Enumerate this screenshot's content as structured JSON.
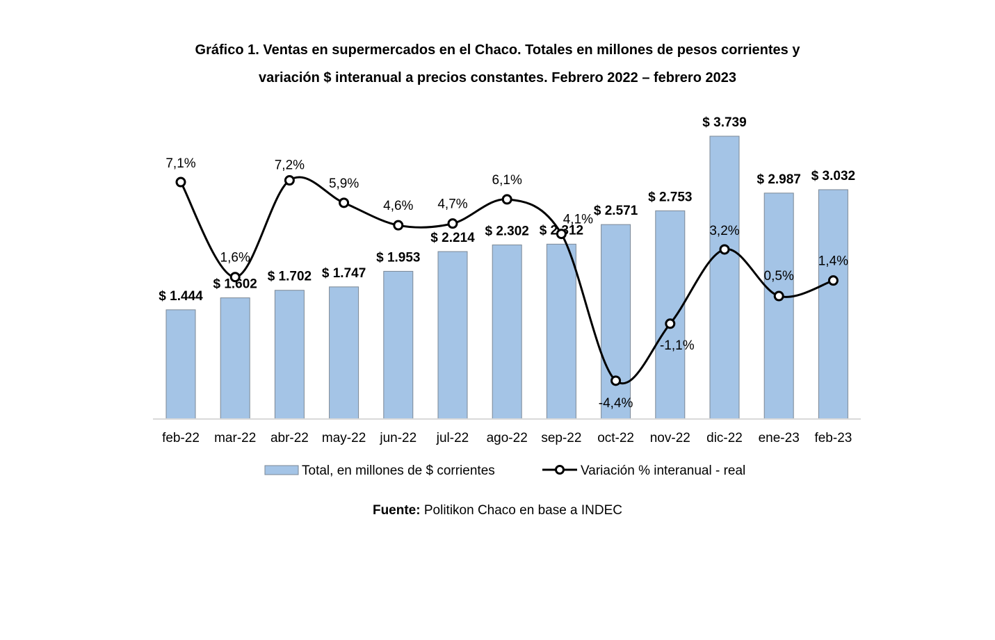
{
  "chart_data": {
    "type": "bar",
    "title_line1": "Gráfico 1. Ventas en supermercados en el Chaco. Totales en millones de pesos corrientes y",
    "title_line2": "variación $ interanual a precios constantes. Febrero 2022 – febrero 2023",
    "categories": [
      "feb-22",
      "mar-22",
      "abr-22",
      "may-22",
      "jun-22",
      "jul-22",
      "ago-22",
      "sep-22",
      "oct-22",
      "nov-22",
      "dic-22",
      "ene-23",
      "feb-23"
    ],
    "series": [
      {
        "name": "Total, en millones de $ corrientes",
        "type": "bar",
        "axis": "left",
        "values": [
          1444,
          1602,
          1702,
          1747,
          1953,
          2214,
          2302,
          2312,
          2571,
          2753,
          3739,
          2987,
          3032
        ],
        "labels": [
          "$ 1.444",
          "$ 1.602",
          "$ 1.702",
          "$ 1.747",
          "$ 1.953",
          "$ 2.214",
          "$ 2.302",
          "$ 2.312",
          "$ 2.571",
          "$ 2.753",
          "$ 3.739",
          "$ 2.987",
          "$ 3.032"
        ]
      },
      {
        "name": "Variación % interanual - real",
        "type": "line",
        "axis": "right",
        "values": [
          7.1,
          1.6,
          7.2,
          5.9,
          4.6,
          4.7,
          6.1,
          4.1,
          -4.4,
          -1.1,
          3.2,
          0.5,
          1.4
        ],
        "labels": [
          "7,1%",
          "1,6%",
          "7,2%",
          "5,9%",
          "4,6%",
          "4,7%",
          "6,1%",
          "4,1%",
          "-4,4%",
          "-1,1%",
          "3,2%",
          "0,5%",
          "1,4%"
        ]
      }
    ],
    "ylim_left": [
      0,
      3739
    ],
    "ylim_right": [
      -6.5,
      10.2
    ],
    "grid": false,
    "legend": "bottom",
    "colors": {
      "bar_fill": "#a4c4e6",
      "bar_stroke": "#7b8794",
      "line": "#000000",
      "marker_fill": "#ffffff",
      "axis": "#d9d9d9"
    }
  },
  "source": {
    "label": "Fuente:",
    "text": " Politikon Chaco en base a INDEC"
  }
}
